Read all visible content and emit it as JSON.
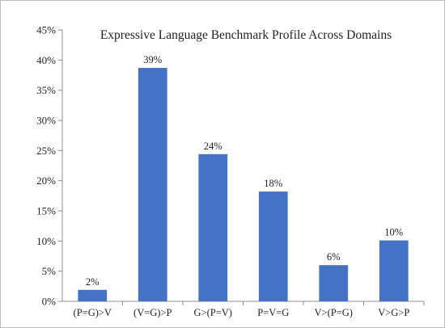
{
  "chart_data": {
    "type": "bar",
    "title": "Expressive Language Benchmark Profile Across Domains",
    "xlabel": "",
    "ylabel": "",
    "categories": [
      "(P=G)>V",
      "(V=G)>P",
      "G>(P=V)",
      "P=V=G",
      "V>(P=G)",
      "V>G>P"
    ],
    "values": [
      2,
      39,
      24,
      18,
      6,
      10
    ],
    "plotted_values": [
      1.9,
      38.7,
      24.4,
      18.2,
      6.0,
      10.1
    ],
    "data_labels": [
      "2%",
      "39%",
      "24%",
      "18%",
      "6%",
      "10%"
    ],
    "ylim": [
      0,
      45
    ],
    "y_ticks": [
      0,
      5,
      10,
      15,
      20,
      25,
      30,
      35,
      40,
      45
    ],
    "y_tick_labels": [
      "0%",
      "5%",
      "10%",
      "15%",
      "20%",
      "25%",
      "30%",
      "35%",
      "40%",
      "45%"
    ],
    "grid": false,
    "legend": "none",
    "bar_color": "#4472c4"
  }
}
